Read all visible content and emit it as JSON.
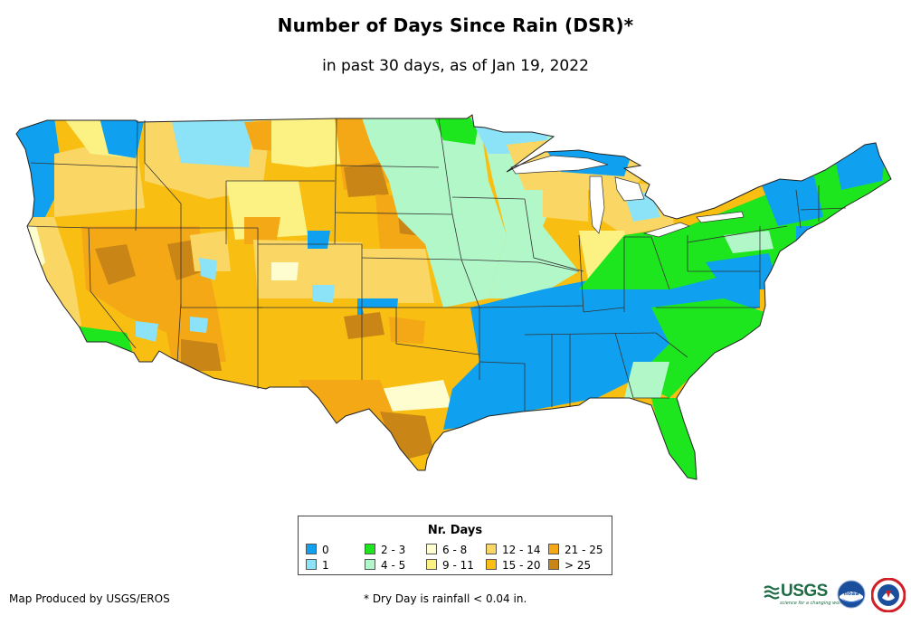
{
  "title": "Number of Days Since Rain (DSR)*",
  "subtitle": "in past 30 days, as of Jan 19, 2022",
  "legend": {
    "title": "Nr. Days",
    "items": [
      {
        "label": "0",
        "color": "#0fa0ef"
      },
      {
        "label": "1",
        "color": "#8ce3f7"
      },
      {
        "label": "2 - 3",
        "color": "#1ee61e"
      },
      {
        "label": "4 - 5",
        "color": "#b2f7c8"
      },
      {
        "label": "6 - 8",
        "color": "#fefdcf"
      },
      {
        "label": "9 - 11",
        "color": "#fcf284"
      },
      {
        "label": "12 - 14",
        "color": "#fad764"
      },
      {
        "label": "15 - 20",
        "color": "#f9be12"
      },
      {
        "label": "21 - 25",
        "color": "#f4a816"
      },
      {
        "label": "> 25",
        "color": "#c98516"
      }
    ]
  },
  "footer": {
    "credit": "Map Produced by USGS/EROS",
    "note": "* Dry Day is rainfall < 0.04 in."
  },
  "logos": {
    "usgs": "USGS",
    "usgs_tagline": "science for a changing world",
    "noaa": "noaa"
  }
}
